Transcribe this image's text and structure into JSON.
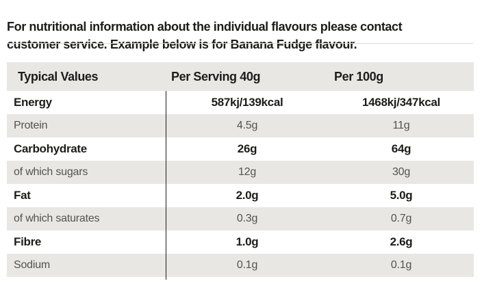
{
  "intro": {
    "line1": "For nutritional information about the individual flavours please contact",
    "line2": "customer service. Example below is for Banana Fudge flavour."
  },
  "table": {
    "headers": {
      "typical_values": "Typical Values",
      "per_serving": "Per Serving 40g",
      "per_100g": "Per 100g"
    },
    "rows": [
      {
        "label": "Energy",
        "per_serving": "587kj/139kcal",
        "per_100g": "1468kj/347kcal",
        "emphasis": true
      },
      {
        "label": "Protein",
        "per_serving": "4.5g",
        "per_100g": "11g",
        "emphasis": false
      },
      {
        "label": "Carbohydrate",
        "per_serving": "26g",
        "per_100g": "64g",
        "emphasis": true
      },
      {
        "label": "of which sugars",
        "per_serving": "12g",
        "per_100g": "30g",
        "emphasis": false
      },
      {
        "label": "Fat",
        "per_serving": "2.0g",
        "per_100g": "5.0g",
        "emphasis": true
      },
      {
        "label": "of which saturates",
        "per_serving": "0.3g",
        "per_100g": "0.7g",
        "emphasis": false
      },
      {
        "label": "Fibre",
        "per_serving": "1.0g",
        "per_100g": "2.6g",
        "emphasis": true
      },
      {
        "label": "Sodium",
        "per_serving": "0.1g",
        "per_100g": "0.1g",
        "emphasis": false
      }
    ]
  },
  "colors": {
    "heading_text": "#1c1c1a",
    "light_text": "#55514d",
    "row_alt_background": "#e9e7e4",
    "header_background": "#e9e7e4",
    "rule": "#d9d9d9",
    "column_divider": "#1c1c1a"
  }
}
